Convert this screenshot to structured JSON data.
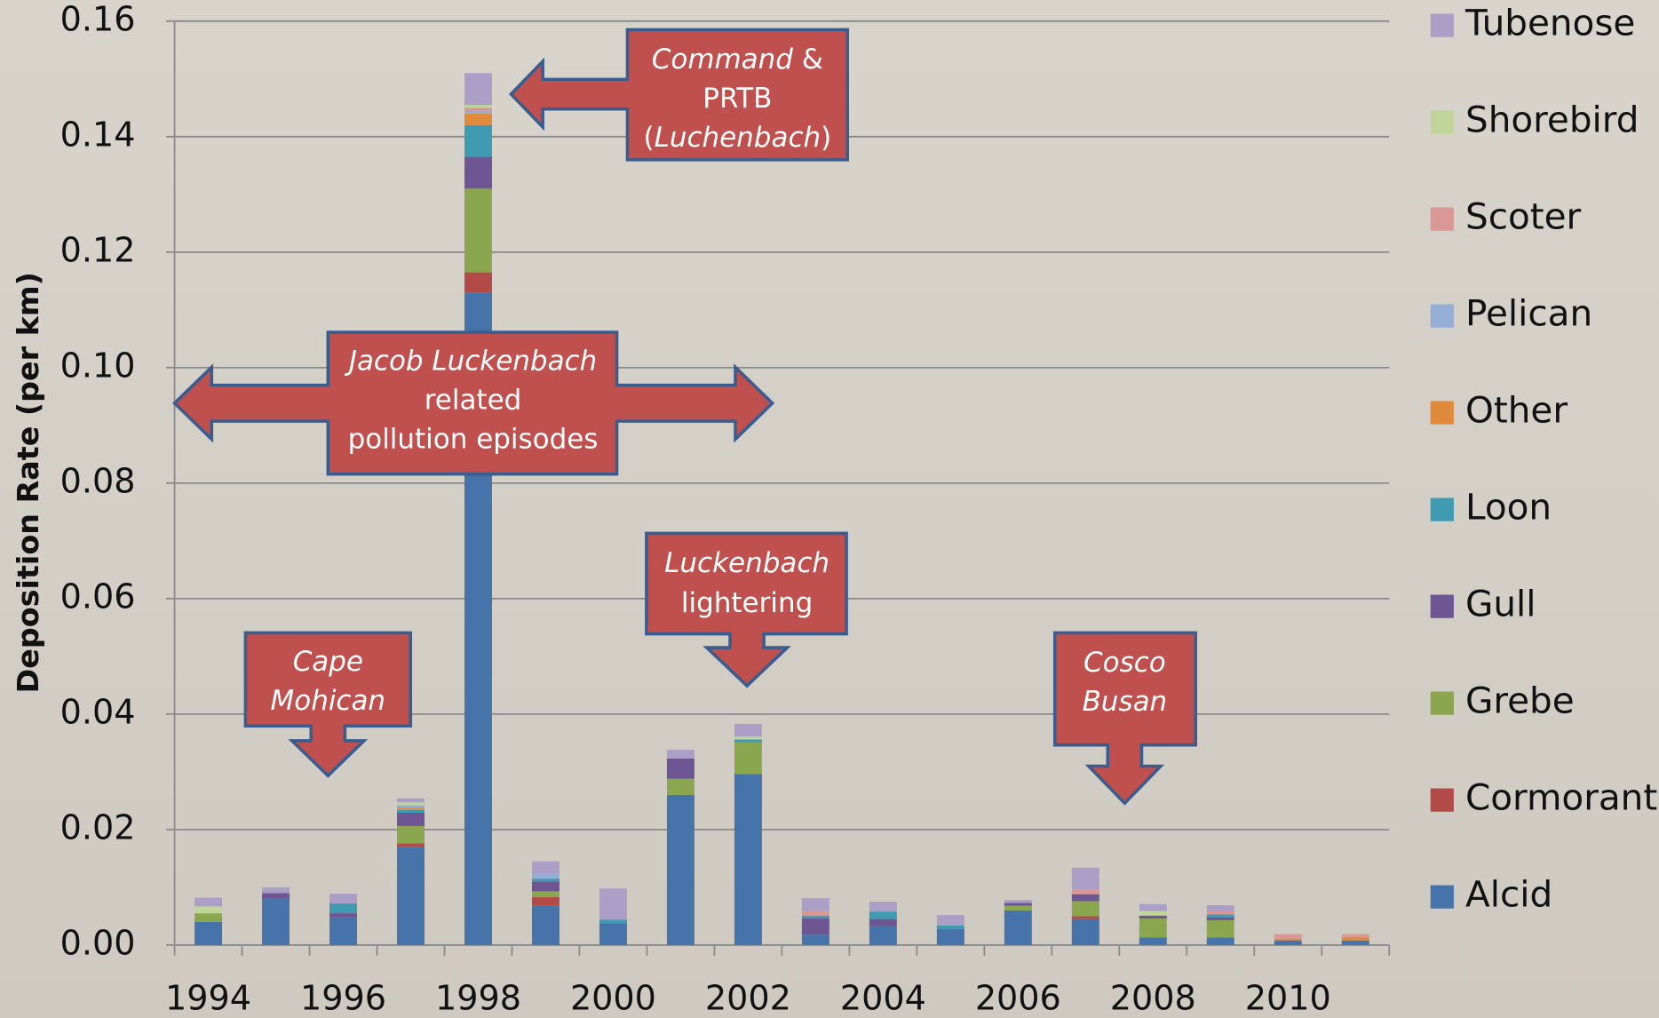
{
  "chart_data": {
    "type": "stacked_bar",
    "y_label": "Deposition Rate (per km)",
    "categories": [
      "1994",
      null,
      "1996",
      null,
      "1998",
      null,
      "2000",
      null,
      "2002",
      null,
      "2004",
      null,
      "2006",
      null,
      "2008",
      null,
      "2010",
      null
    ],
    "series": [
      {
        "name": "Alcid",
        "color": "#4673a9",
        "values": [
          0.004,
          0.008,
          0.0048,
          0.017,
          0.113,
          0.0068,
          0.0038,
          0.026,
          0.0296,
          0.0018,
          0.0033,
          0.0028,
          0.006,
          0.0045,
          0.0013,
          0.0013,
          0.0008,
          0.0008
        ]
      },
      {
        "name": "Cormorant",
        "color": "#b24a48",
        "values": [
          0,
          0,
          0,
          0.0006,
          0.0035,
          0.0015,
          0,
          0,
          0,
          0,
          0,
          0,
          0,
          0.0005,
          0,
          0,
          0,
          0
        ]
      },
      {
        "name": "Grebe",
        "color": "#8aa64f",
        "values": [
          0.0015,
          0,
          0,
          0.003,
          0.0145,
          0.001,
          0,
          0.0028,
          0.0055,
          0,
          0,
          0,
          0.0008,
          0.0026,
          0.0033,
          0.003,
          0,
          0
        ]
      },
      {
        "name": "Gull",
        "color": "#6e5594",
        "values": [
          0,
          0.001,
          0.0007,
          0.0023,
          0.0055,
          0.0017,
          0,
          0.0035,
          0,
          0.0028,
          0.0012,
          0,
          0.0005,
          0.0012,
          0.0005,
          0.0005,
          0,
          0
        ]
      },
      {
        "name": "Loon",
        "color": "#3f9bb2",
        "values": [
          0,
          0,
          0.0017,
          0.0005,
          0.0055,
          0.0005,
          0.0006,
          0,
          0.0005,
          0.0005,
          0.0013,
          0.0006,
          0,
          0,
          0,
          0.0005,
          0,
          0
        ]
      },
      {
        "name": "Other",
        "color": "#e08a3e",
        "values": [
          0,
          0,
          0,
          0.0004,
          0.002,
          0,
          0,
          0,
          0,
          0,
          0,
          0,
          0,
          0,
          0,
          0,
          0.0003,
          0.0006
        ]
      },
      {
        "name": "Pelican",
        "color": "#95aed6",
        "values": [
          0,
          0,
          0,
          0.0004,
          0.0005,
          0.0008,
          0,
          0,
          0,
          0,
          0,
          0,
          0,
          0,
          0,
          0,
          0,
          0
        ]
      },
      {
        "name": "Scoter",
        "color": "#d99795",
        "values": [
          0,
          0,
          0,
          0,
          0.0005,
          0,
          0,
          0,
          0,
          0.0008,
          0,
          0,
          0,
          0.0008,
          0,
          0.0006,
          0.0008,
          0.0005
        ]
      },
      {
        "name": "Shorebird",
        "color": "#bfd59a",
        "values": [
          0.0012,
          0,
          0,
          0.0005,
          0.0005,
          0,
          0,
          0,
          0.0005,
          0,
          0,
          0,
          0,
          0,
          0.0008,
          0,
          0,
          0
        ]
      },
      {
        "name": "Tubenose",
        "color": "#ab9fc8",
        "values": [
          0.0015,
          0.001,
          0.0017,
          0.0007,
          0.0055,
          0.0022,
          0.0054,
          0.0015,
          0.0022,
          0.0022,
          0.0017,
          0.0018,
          0.0005,
          0.0038,
          0.0012,
          0.001,
          0,
          0
        ]
      }
    ],
    "ylim": [
      0,
      0.16
    ],
    "yticks": [
      {
        "value": 0,
        "label": "0.00"
      },
      0.02,
      0.04,
      0.06,
      0.08,
      {
        "value": 0.1,
        "label": "0.10"
      },
      0.12,
      0.14,
      0.16
    ],
    "grid": true,
    "legend": "right",
    "annotations": [
      {
        "lines": [
          [
            {
              "text": "Command",
              "italic": true
            },
            {
              "text": " &"
            }
          ],
          [
            {
              "text": "PRTB"
            }
          ],
          [
            {
              "text": "("
            },
            {
              "text": "Luchenbach",
              "italic": true
            },
            {
              "text": ")"
            }
          ]
        ]
      },
      {
        "lines": [
          [
            {
              "text": "Jacob Luckenbach",
              "italic": true
            }
          ],
          [
            {
              "text": "related"
            }
          ],
          [
            {
              "text": "pollution episodes"
            }
          ]
        ]
      },
      {
        "lines": [
          [
            {
              "text": "Luckenbach",
              "italic": true
            }
          ],
          [
            {
              "text": "lightering"
            }
          ]
        ]
      },
      {
        "lines": [
          [
            {
              "text": "Cape",
              "italic": true
            }
          ],
          [
            {
              "text": "Mohican",
              "italic": true
            }
          ]
        ]
      },
      {
        "lines": [
          [
            {
              "text": "Cosco",
              "italic": true
            }
          ],
          [
            {
              "text": "Busan",
              "italic": true
            }
          ]
        ]
      }
    ]
  }
}
